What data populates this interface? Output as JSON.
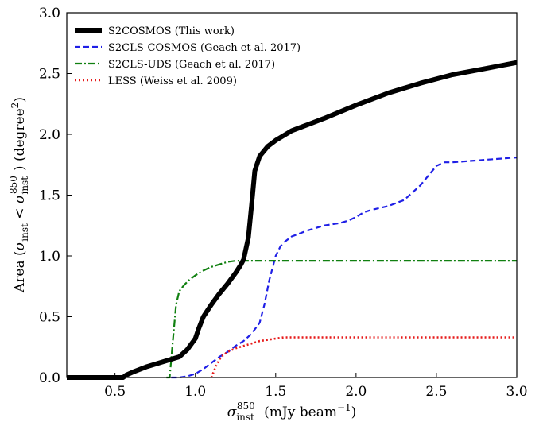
{
  "chart_data": {
    "type": "line",
    "xlabel": "σ_inst^850 (mJy beam^-1)",
    "ylabel": "Area (σ_inst < σ_inst^850) (degree^2)",
    "xlim": [
      0.2,
      3.0
    ],
    "ylim": [
      0.0,
      3.0
    ],
    "x_ticks": [
      0.5,
      1.0,
      1.5,
      2.0,
      2.5,
      3.0
    ],
    "x_tick_labels": [
      "0.5",
      "1.0",
      "1.5",
      "2.0",
      "2.5",
      "3.0"
    ],
    "y_ticks": [
      0.0,
      0.5,
      1.0,
      1.5,
      2.0,
      2.5,
      3.0
    ],
    "y_tick_labels": [
      "0.0",
      "0.5",
      "1.0",
      "1.5",
      "2.0",
      "2.5",
      "3.0"
    ],
    "grid": false,
    "legend_position": "top-left",
    "series": [
      {
        "name": "S2COSMOS (This work)",
        "color": "#000000",
        "style": "solid-thick",
        "x": [
          0.2,
          0.55,
          0.57,
          0.62,
          0.7,
          0.8,
          0.9,
          0.95,
          1.0,
          1.02,
          1.05,
          1.1,
          1.15,
          1.2,
          1.25,
          1.28,
          1.3,
          1.33,
          1.35,
          1.37,
          1.4,
          1.45,
          1.5,
          1.6,
          1.7,
          1.8,
          2.0,
          2.2,
          2.4,
          2.6,
          2.8,
          3.0
        ],
        "y": [
          0.0,
          0.0,
          0.02,
          0.05,
          0.09,
          0.13,
          0.17,
          0.23,
          0.32,
          0.4,
          0.5,
          0.6,
          0.69,
          0.77,
          0.86,
          0.92,
          0.97,
          1.15,
          1.42,
          1.7,
          1.82,
          1.9,
          1.95,
          2.03,
          2.08,
          2.13,
          2.24,
          2.34,
          2.42,
          2.49,
          2.54,
          2.59
        ]
      },
      {
        "name": "S2CLS-COSMOS (Geach et al. 2017)",
        "color": "#1f1fe6",
        "style": "dashed",
        "x": [
          0.85,
          0.9,
          0.95,
          1.0,
          1.05,
          1.1,
          1.15,
          1.2,
          1.25,
          1.3,
          1.35,
          1.4,
          1.43,
          1.46,
          1.5,
          1.53,
          1.56,
          1.6,
          1.7,
          1.8,
          1.9,
          1.95,
          2.0,
          2.05,
          2.1,
          2.2,
          2.3,
          2.35,
          2.4,
          2.45,
          2.5,
          2.55,
          2.6,
          2.8,
          3.0
        ],
        "y": [
          0.0,
          0.0,
          0.01,
          0.03,
          0.07,
          0.12,
          0.17,
          0.21,
          0.26,
          0.3,
          0.36,
          0.45,
          0.6,
          0.8,
          1.0,
          1.08,
          1.12,
          1.16,
          1.21,
          1.25,
          1.27,
          1.29,
          1.32,
          1.36,
          1.38,
          1.41,
          1.46,
          1.52,
          1.58,
          1.66,
          1.74,
          1.77,
          1.77,
          1.79,
          1.81
        ]
      },
      {
        "name": "S2CLS-UDS (Geach et al. 2017)",
        "color": "#108010",
        "style": "dashdot",
        "x": [
          0.82,
          0.84,
          0.86,
          0.88,
          0.9,
          0.93,
          0.96,
          1.0,
          1.05,
          1.1,
          1.15,
          1.2,
          1.25,
          1.28,
          3.0
        ],
        "y": [
          0.0,
          0.0,
          0.3,
          0.6,
          0.71,
          0.76,
          0.8,
          0.84,
          0.88,
          0.91,
          0.93,
          0.95,
          0.96,
          0.96,
          0.96
        ]
      },
      {
        "name": "LESS (Weiss et al. 2009)",
        "color": "#e61a1a",
        "style": "dotted",
        "x": [
          1.1,
          1.13,
          1.16,
          1.2,
          1.25,
          1.3,
          1.35,
          1.4,
          1.45,
          1.5,
          1.55,
          1.6,
          2.0,
          2.5,
          3.0
        ],
        "y": [
          0.0,
          0.1,
          0.17,
          0.21,
          0.24,
          0.26,
          0.28,
          0.3,
          0.31,
          0.32,
          0.33,
          0.33,
          0.33,
          0.33,
          0.33
        ]
      }
    ]
  }
}
